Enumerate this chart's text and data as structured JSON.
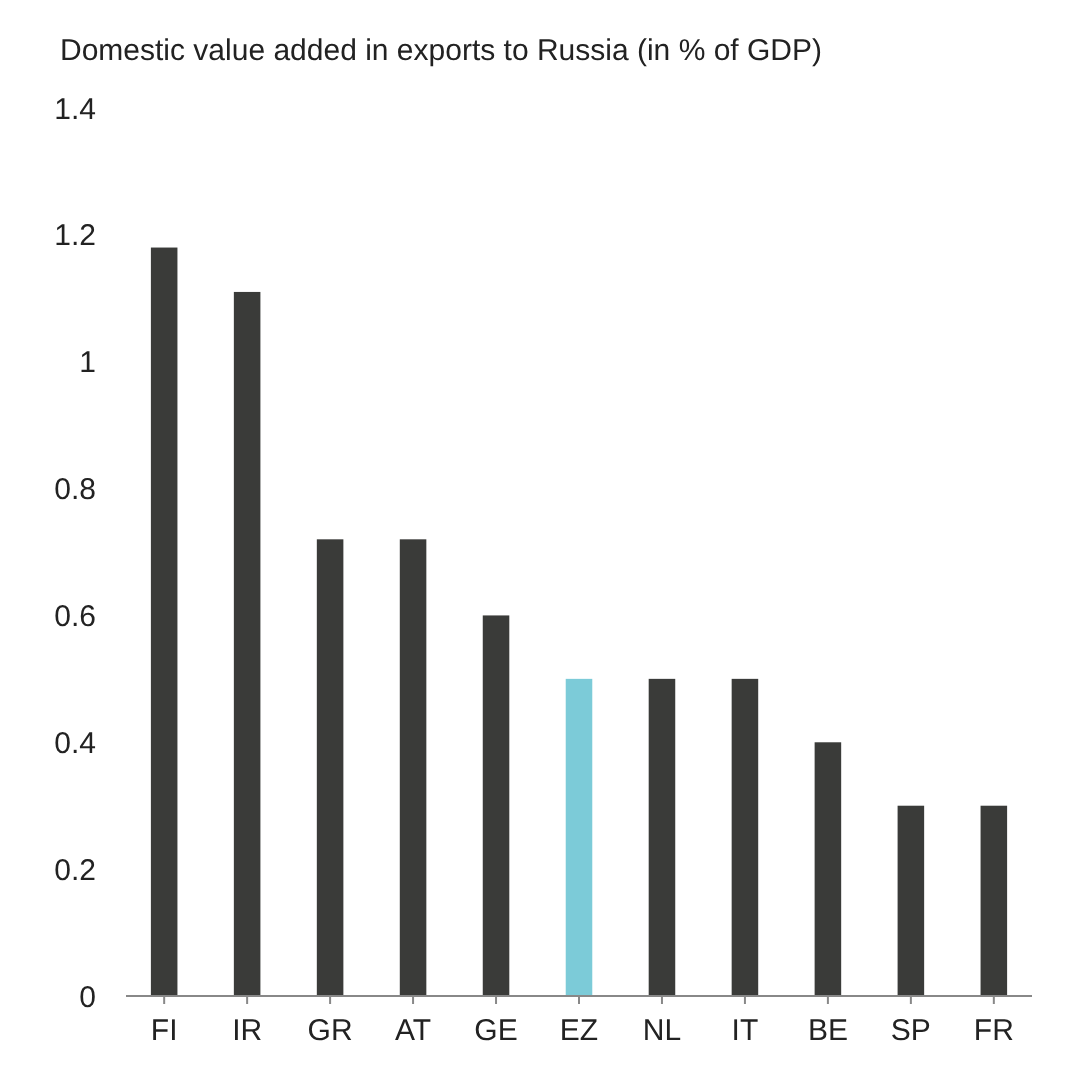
{
  "chart_data": {
    "type": "bar",
    "title": "Domestic value added in exports to Russia (in % of GDP)",
    "categories": [
      "FI",
      "IR",
      "GR",
      "AT",
      "GE",
      "EZ",
      "NL",
      "IT",
      "BE",
      "SP",
      "FR"
    ],
    "values": [
      1.18,
      1.11,
      0.72,
      0.72,
      0.6,
      0.5,
      0.5,
      0.5,
      0.4,
      0.3,
      0.3
    ],
    "colors": [
      "#3a3b39",
      "#3a3b39",
      "#3a3b39",
      "#3a3b39",
      "#3a3b39",
      "#7ccbd8",
      "#3a3b39",
      "#3a3b39",
      "#3a3b39",
      "#3a3b39",
      "#3a3b39"
    ],
    "ylim": [
      0,
      1.4
    ],
    "yticks": [
      0,
      0.2,
      0.4,
      0.6,
      0.8,
      1,
      1.2,
      1.4
    ],
    "grid": false
  }
}
